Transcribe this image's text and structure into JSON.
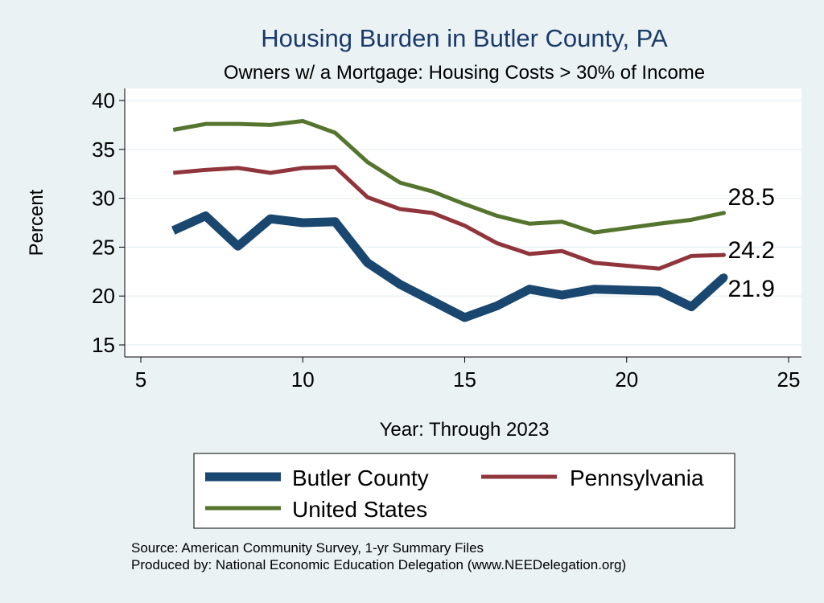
{
  "chart_data": {
    "type": "line",
    "title": "Housing Burden in Butler County, PA",
    "subtitle": "Owners w/ a Mortgage: Housing Costs > 30% of Income",
    "xlabel": "Year: Through 2023",
    "ylabel": "Percent",
    "xlim": [
      5,
      25
    ],
    "ylim": [
      15,
      40
    ],
    "x_ticks": [
      5,
      10,
      15,
      20,
      25
    ],
    "y_ticks": [
      15,
      20,
      25,
      30,
      35,
      40
    ],
    "grid": true,
    "legend_position": "bottom",
    "series": [
      {
        "name": "Butler County",
        "color": "#1a476f",
        "x": [
          6,
          7,
          8,
          9,
          10,
          11,
          12,
          13,
          14,
          15,
          16,
          17,
          18,
          19,
          21,
          22,
          23
        ],
        "values": [
          26.7,
          28.2,
          25.1,
          27.9,
          27.5,
          27.6,
          23.4,
          21.2,
          19.5,
          17.8,
          19.0,
          20.7,
          20.1,
          20.7,
          20.5,
          18.9,
          21.9
        ],
        "end_label": "21.9"
      },
      {
        "name": "Pennsylvania",
        "color": "#90353b",
        "x": [
          6,
          7,
          8,
          9,
          10,
          11,
          12,
          13,
          14,
          15,
          16,
          17,
          18,
          19,
          21,
          22,
          23
        ],
        "values": [
          32.6,
          32.9,
          33.1,
          32.6,
          33.1,
          33.2,
          30.1,
          28.9,
          28.5,
          27.2,
          25.4,
          24.3,
          24.6,
          23.4,
          22.8,
          24.1,
          24.2
        ],
        "end_label": "24.2"
      },
      {
        "name": "United States",
        "color": "#55752f",
        "x": [
          6,
          7,
          8,
          9,
          10,
          11,
          12,
          13,
          14,
          15,
          16,
          17,
          18,
          19,
          21,
          22,
          23
        ],
        "values": [
          37.0,
          37.6,
          37.6,
          37.5,
          37.9,
          36.7,
          33.7,
          31.6,
          30.7,
          29.4,
          28.2,
          27.4,
          27.6,
          26.5,
          27.4,
          27.8,
          28.5
        ],
        "end_label": "28.5"
      }
    ]
  },
  "footer": {
    "source": "Source: American Community Survey, 1-yr Summary Files",
    "produced_by": "Produced by: National Economic Education Delegation (www.NEEDelegation.org)"
  }
}
